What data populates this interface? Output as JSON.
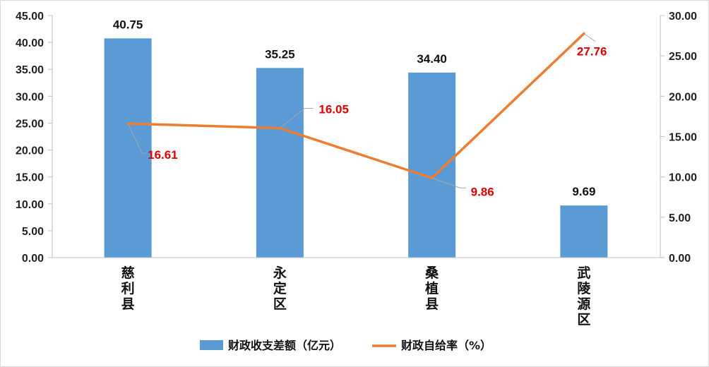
{
  "chart_data": {
    "type": "bar",
    "categories": [
      "慈利县",
      "永定区",
      "桑植县",
      "武陵源区"
    ],
    "series": [
      {
        "name": "财政收支差额（亿元）",
        "type": "bar",
        "axis": "left",
        "values": [
          40.75,
          35.25,
          34.4,
          9.69
        ],
        "labels": [
          "40.75",
          "35.25",
          "34.40",
          "9.69"
        ],
        "color": "#5b9bd5"
      },
      {
        "name": "财政自给率（%）",
        "type": "line",
        "axis": "right",
        "values": [
          16.61,
          16.05,
          9.86,
          27.76
        ],
        "labels": [
          "16.61",
          "16.05",
          "9.86",
          "27.76"
        ],
        "color": "#ed7d31",
        "label_color": "#e00000"
      }
    ],
    "y_left": {
      "ylim": [
        0,
        45
      ],
      "ticks": [
        "0.00",
        "5.00",
        "10.00",
        "15.00",
        "20.00",
        "25.00",
        "30.00",
        "35.00",
        "40.00",
        "45.00"
      ]
    },
    "y_right": {
      "ylim": [
        0,
        30
      ],
      "ticks": [
        "0.00",
        "5.00",
        "10.00",
        "15.00",
        "20.00",
        "25.00",
        "30.00"
      ]
    },
    "grid": false,
    "legend_position": "bottom",
    "title": "",
    "xlabel": ""
  }
}
